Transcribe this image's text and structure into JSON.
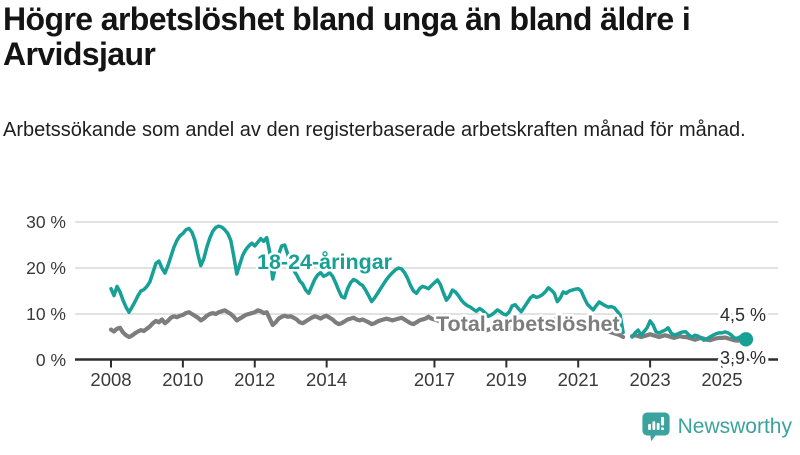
{
  "header": {
    "title_lines": [
      "Högre arbetslöshet bland unga än bland äldre i",
      "Arvidsjaur"
    ],
    "subtitle": "Arbetssökande som andel av den registerbaserade arbetskraften månad för månad."
  },
  "branding": {
    "name": "Newsworthy",
    "icon": "bar-chart-speech-bubble-icon",
    "color": "#3ba39d"
  },
  "chart_data": {
    "type": "line",
    "unit": "%",
    "x_range": {
      "start": "2008-01",
      "end": "2025-09"
    },
    "ylim": [
      0,
      32
    ],
    "grid": true,
    "colors": {
      "youth": "#16a096",
      "total": "#7d7d7d",
      "axis": "#2e2e2e",
      "gridline": "#d9d9d9"
    },
    "y_ticks": [
      {
        "value": 0,
        "label": "0 %"
      },
      {
        "value": 10,
        "label": "10 %"
      },
      {
        "value": 20,
        "label": "20 %"
      },
      {
        "value": 30,
        "label": "30 %"
      }
    ],
    "x_ticks": [
      {
        "value": 2008,
        "label": "2008"
      },
      {
        "value": 2010,
        "label": "2010"
      },
      {
        "value": 2012,
        "label": "2012"
      },
      {
        "value": 2014,
        "label": "2014"
      },
      {
        "value": 2017,
        "label": "2017"
      },
      {
        "value": 2019,
        "label": "2019"
      },
      {
        "value": 2021,
        "label": "2021"
      },
      {
        "value": 2023,
        "label": "2023"
      },
      {
        "value": 2025,
        "label": "2025"
      }
    ],
    "series": [
      {
        "id": "total",
        "name": "Total arbetslöshet",
        "color": "#7d7d7d",
        "stroke_width": 4.2,
        "start": "2008-01",
        "end_dot": false,
        "values": [
          6.6,
          6.2,
          6.8,
          7.0,
          6.0,
          5.4,
          5.0,
          5.3,
          5.8,
          6.2,
          6.5,
          6.3,
          6.8,
          7.3,
          8.0,
          8.5,
          8.2,
          8.8,
          8.0,
          8.5,
          9.2,
          9.5,
          9.3,
          9.6,
          9.8,
          10.2,
          10.4,
          10.0,
          9.6,
          9.2,
          8.6,
          9.0,
          9.6,
          10.0,
          10.2,
          10.0,
          10.4,
          10.6,
          10.8,
          10.4,
          10.0,
          9.4,
          8.6,
          9.0,
          9.4,
          9.8,
          10.0,
          10.2,
          10.4,
          10.8,
          10.6,
          10.2,
          10.4,
          9.0,
          7.6,
          8.2,
          9.0,
          9.4,
          9.6,
          9.4,
          9.5,
          9.2,
          8.8,
          8.2,
          8.0,
          8.4,
          8.8,
          9.2,
          9.5,
          9.3,
          9.0,
          9.4,
          9.6,
          9.2,
          8.8,
          8.2,
          7.8,
          8.0,
          8.4,
          8.8,
          9.0,
          9.2,
          8.8,
          8.6,
          8.8,
          8.5,
          8.2,
          7.8,
          8.0,
          8.4,
          8.6,
          8.8,
          9.0,
          8.8,
          8.6,
          8.8,
          9.0,
          9.2,
          8.8,
          8.4,
          8.0,
          7.8,
          8.2,
          8.6,
          8.8,
          9.0,
          9.4,
          9.0,
          8.8,
          8.6,
          8.2,
          7.8,
          7.5,
          7.3,
          7.6,
          7.8,
          7.6,
          7.4,
          7.2,
          7.0,
          7.2,
          7.4,
          7.0,
          6.8,
          6.6,
          6.4,
          6.6,
          6.8,
          7.0,
          7.2,
          7.0,
          6.8,
          6.6,
          6.8,
          7.0,
          7.2,
          6.8,
          6.6,
          6.8,
          7.0,
          7.2,
          7.4,
          7.2,
          7.0,
          7.2,
          7.4,
          8.0,
          8.5,
          8.8,
          8.6,
          8.4,
          8.6,
          8.8,
          8.6,
          8.4,
          8.2,
          8.0,
          7.8,
          7.5,
          7.2,
          7.0,
          6.8,
          6.6,
          6.8,
          6.6,
          6.4,
          6.2,
          6.0,
          5.8,
          5.6,
          5.4,
          5.0,
          null,
          null,
          5.2,
          5.4,
          5.2,
          5.0,
          5.2,
          5.4,
          5.6,
          5.4,
          5.2,
          5.0,
          5.2,
          5.4,
          5.2,
          5.0,
          4.8,
          5.0,
          5.2,
          5.0,
          5.0,
          4.8,
          4.6,
          4.4,
          4.6,
          4.8,
          4.6,
          4.4,
          4.3,
          4.5,
          4.7,
          4.8,
          4.8,
          4.9,
          4.7,
          4.5,
          4.3,
          4.2,
          4.3,
          4.1,
          3.9
        ]
      },
      {
        "id": "youth",
        "name": "18-24-åringar",
        "color": "#16a096",
        "stroke_width": 3.5,
        "start": "2008-01",
        "end_dot": true,
        "values": [
          15.5,
          14.0,
          16.0,
          14.8,
          13.0,
          11.5,
          10.4,
          11.5,
          12.7,
          14.0,
          15.0,
          15.3,
          16.0,
          17.0,
          19.0,
          21.0,
          21.5,
          20.0,
          18.9,
          20.5,
          22.5,
          24.5,
          26.0,
          27.0,
          27.5,
          28.3,
          28.6,
          27.8,
          26.0,
          23.0,
          20.5,
          22.0,
          24.5,
          26.5,
          28.0,
          28.8,
          29.1,
          28.9,
          28.3,
          27.5,
          26.0,
          22.5,
          18.7,
          20.8,
          22.8,
          24.0,
          24.8,
          25.4,
          24.8,
          25.6,
          26.4,
          25.8,
          26.6,
          23.5,
          17.6,
          20.5,
          23.0,
          24.8,
          25.0,
          23.0,
          20.5,
          19.5,
          18.5,
          17.2,
          16.5,
          15.2,
          14.5,
          16.0,
          17.5,
          18.5,
          19.0,
          18.2,
          18.5,
          19.0,
          18.2,
          16.8,
          15.2,
          13.8,
          13.5,
          15.5,
          16.8,
          17.5,
          17.2,
          16.6,
          16.2,
          15.2,
          14.0,
          12.7,
          13.5,
          14.5,
          15.5,
          16.5,
          17.5,
          18.3,
          19.0,
          19.6,
          20.0,
          19.8,
          19.0,
          17.8,
          16.2,
          15.0,
          14.5,
          15.5,
          16.0,
          15.8,
          15.5,
          16.2,
          16.8,
          17.4,
          16.4,
          14.6,
          13.0,
          13.8,
          15.2,
          14.8,
          14.0,
          13.0,
          12.3,
          11.8,
          11.5,
          11.0,
          10.6,
          11.2,
          10.8,
          10.2,
          9.5,
          9.8,
          10.3,
          10.9,
          10.5,
          10.0,
          9.8,
          10.5,
          11.8,
          12.0,
          11.2,
          10.5,
          11.5,
          12.5,
          13.5,
          14.0,
          13.6,
          13.8,
          14.2,
          14.8,
          15.7,
          15.2,
          14.5,
          12.7,
          13.5,
          14.8,
          14.5,
          15.0,
          15.2,
          15.4,
          15.5,
          15.0,
          13.5,
          12.2,
          11.5,
          10.9,
          11.8,
          12.6,
          12.2,
          11.8,
          11.5,
          11.6,
          11.4,
          10.6,
          9.8,
          6.0,
          null,
          null,
          5.0,
          5.9,
          6.5,
          5.4,
          6.2,
          7.0,
          8.5,
          7.6,
          6.1,
          5.9,
          6.2,
          6.5,
          7.0,
          5.9,
          5.4,
          5.6,
          5.9,
          6.1,
          6.1,
          5.4,
          5.0,
          5.4,
          5.2,
          4.8,
          4.3,
          4.6,
          5.0,
          5.4,
          5.7,
          5.9,
          5.9,
          6.1,
          5.9,
          5.5,
          4.8,
          4.7,
          5.0,
          4.8,
          4.5
        ]
      }
    ],
    "annotations": [
      {
        "id": "youth-label",
        "text": "18-24-åringar",
        "color": "#16a096"
      },
      {
        "id": "total-label",
        "text": "Total arbetslöshet",
        "color": "#7d7d7d"
      },
      {
        "id": "youth-end",
        "text": "4,5 %",
        "color": "#2b2b2b"
      },
      {
        "id": "total-end",
        "text": "3,9 %",
        "color": "#2b2b2b"
      }
    ]
  }
}
